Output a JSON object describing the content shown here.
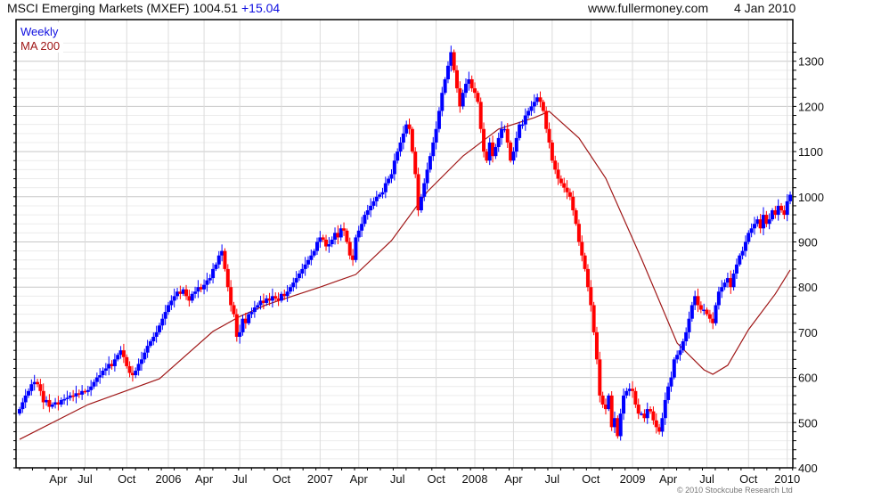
{
  "header": {
    "title": "MSCI Emerging Markets (MXEF) 1004.51",
    "change": "+15.04",
    "site": "www.fullermoney.com",
    "date": "4 Jan 2010"
  },
  "footer": {
    "copyright": "© 2010 Stockcube Research Ltd"
  },
  "chart_data": {
    "type": "candlestick",
    "title": "MSCI Emerging Markets (MXEF)",
    "legend": [
      {
        "label": "Weekly",
        "color": "#1010e0"
      },
      {
        "label": "MA 200",
        "color": "#a01818"
      }
    ],
    "legend_placement": "top-left",
    "colors": {
      "up": "#0000ff",
      "down": "#ff0000",
      "ma": "#a01818",
      "grid": "#dddddd"
    },
    "ylim": [
      400,
      1350
    ],
    "y_ticks": [
      400,
      500,
      600,
      700,
      800,
      900,
      1000,
      1100,
      1200,
      1300
    ],
    "x_ticks": [
      {
        "label": "Apr",
        "week": 13
      },
      {
        "label": "Jul",
        "week": 22
      },
      {
        "label": "Oct",
        "week": 36
      },
      {
        "label": "2006",
        "week": 50
      },
      {
        "label": "Apr",
        "week": 62
      },
      {
        "label": "Jul",
        "week": 74
      },
      {
        "label": "Oct",
        "week": 88
      },
      {
        "label": "2007",
        "week": 101
      },
      {
        "label": "Apr",
        "week": 114
      },
      {
        "label": "Jul",
        "week": 127
      },
      {
        "label": "Oct",
        "week": 140
      },
      {
        "label": "2008",
        "week": 153
      },
      {
        "label": "Apr",
        "week": 166
      },
      {
        "label": "Jul",
        "week": 179
      },
      {
        "label": "Oct",
        "week": 192
      },
      {
        "label": "2009",
        "week": 206
      },
      {
        "label": "Apr",
        "week": 218
      },
      {
        "label": "Jul",
        "week": 231
      },
      {
        "label": "Oct",
        "week": 245
      },
      {
        "label": "2010",
        "week": 258
      }
    ],
    "wick": 12,
    "weekly_close": [
      530,
      545,
      560,
      570,
      585,
      590,
      585,
      570,
      545,
      550,
      535,
      540,
      545,
      540,
      550,
      552,
      555,
      560,
      558,
      565,
      562,
      570,
      568,
      572,
      580,
      590,
      600,
      605,
      615,
      620,
      630,
      625,
      640,
      650,
      660,
      645,
      625,
      610,
      605,
      615,
      630,
      640,
      655,
      670,
      680,
      690,
      700,
      715,
      730,
      745,
      760,
      770,
      780,
      790,
      785,
      795,
      780,
      770,
      785,
      790,
      800,
      795,
      805,
      815,
      820,
      840,
      850,
      870,
      880,
      840,
      800,
      760,
      740,
      690,
      700,
      730,
      720,
      740,
      745,
      755,
      760,
      770,
      765,
      775,
      770,
      780,
      775,
      770,
      785,
      780,
      790,
      800,
      810,
      820,
      830,
      840,
      850,
      860,
      870,
      880,
      900,
      910,
      905,
      890,
      895,
      905,
      920,
      910,
      930,
      925,
      900,
      870,
      860,
      910,
      925,
      940,
      960,
      970,
      980,
      990,
      1000,
      1005,
      1010,
      1030,
      1040,
      1050,
      1080,
      1100,
      1120,
      1140,
      1160,
      1150,
      1100,
      1050,
      970,
      1000,
      1030,
      1060,
      1090,
      1120,
      1150,
      1190,
      1230,
      1260,
      1290,
      1320,
      1280,
      1240,
      1200,
      1230,
      1250,
      1260,
      1240,
      1230,
      1210,
      1150,
      1100,
      1080,
      1120,
      1090,
      1110,
      1130,
      1150,
      1150,
      1120,
      1080,
      1100,
      1130,
      1160,
      1160,
      1180,
      1190,
      1200,
      1210,
      1220,
      1210,
      1190,
      1150,
      1120,
      1080,
      1060,
      1040,
      1030,
      1020,
      1010,
      1000,
      970,
      940,
      900,
      870,
      840,
      800,
      760,
      700,
      640,
      560,
      540,
      530,
      560,
      490,
      510,
      470,
      520,
      560,
      570,
      575,
      570,
      540,
      520,
      520,
      510,
      530,
      525,
      505,
      490,
      480,
      510,
      550,
      580,
      600,
      640,
      650,
      660,
      680,
      700,
      730,
      760,
      780,
      760,
      750,
      750,
      740,
      730,
      720,
      760,
      790,
      800,
      810,
      820,
      800,
      830,
      850,
      870,
      880,
      900,
      920,
      930,
      940,
      950,
      930,
      960,
      940,
      950,
      970,
      960,
      980,
      970,
      960,
      990,
      1004.51
    ],
    "ma200": [
      [
        0,
        463
      ],
      [
        23,
        540
      ],
      [
        47,
        597
      ],
      [
        65,
        702
      ],
      [
        74,
        735
      ],
      [
        83,
        761
      ],
      [
        101,
        800
      ],
      [
        113,
        828
      ],
      [
        125,
        903
      ],
      [
        137,
        1011
      ],
      [
        149,
        1090
      ],
      [
        161,
        1150
      ],
      [
        173,
        1175
      ],
      [
        178,
        1189
      ],
      [
        188,
        1130
      ],
      [
        197,
        1041
      ],
      [
        209,
        863
      ],
      [
        221,
        676
      ],
      [
        230,
        617
      ],
      [
        233,
        607
      ],
      [
        238,
        627
      ],
      [
        245,
        706
      ],
      [
        254,
        785
      ],
      [
        259,
        838
      ]
    ]
  }
}
